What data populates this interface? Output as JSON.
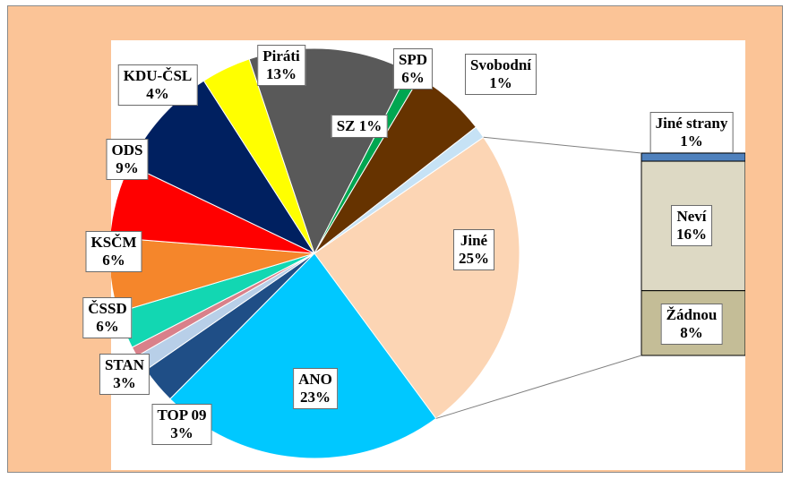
{
  "chart_data": {
    "type": "pie",
    "title": "",
    "slices": [
      {
        "label": "Jiné",
        "value": 25,
        "value_label": "25%",
        "color": "#fcd5b4"
      },
      {
        "label": "ANO",
        "value": 23,
        "value_label": "23%",
        "color": "#00c8ff"
      },
      {
        "label": "TOP 09",
        "value": 3,
        "value_label": "3%",
        "color": "#1f4e86"
      },
      {
        "label": "",
        "value": 1.3,
        "value_label": "",
        "color": "#b8cfe8"
      },
      {
        "label": "",
        "value": 0.8,
        "value_label": "",
        "color": "#d9808a"
      },
      {
        "label": "STAN",
        "value": 3,
        "value_label": "3%",
        "color": "#12d7b2"
      },
      {
        "label": "ČSSD",
        "value": 6,
        "value_label": "6%",
        "color": "#f5862b"
      },
      {
        "label": "KSČM",
        "value": 6,
        "value_label": "6%",
        "color": "#ff0000"
      },
      {
        "label": "ODS",
        "value": 9,
        "value_label": "9%",
        "color": "#002060"
      },
      {
        "label": "KDU-ČSL",
        "value": 4,
        "value_label": "4%",
        "color": "#ffff00"
      },
      {
        "label": "Piráti",
        "value": 13,
        "value_label": "13%",
        "color": "#595959"
      },
      {
        "label": "SZ",
        "value": 1,
        "value_label": "1%",
        "color": "#00a651"
      },
      {
        "label": "SPD",
        "value": 6,
        "value_label": "6%",
        "color": "#663300"
      },
      {
        "label": "Svobodní",
        "value": 1,
        "value_label": "1%",
        "color": "#c6e2f5"
      }
    ],
    "breakdown": {
      "of": "Jiné",
      "type": "stacked-bar",
      "segments": [
        {
          "label": "Jiné strany",
          "value": 1,
          "value_label": "1%",
          "color": "#4f81bd"
        },
        {
          "label": "Neví",
          "value": 16,
          "value_label": "16%",
          "color": "#ddd9c4"
        },
        {
          "label": "Žádnou",
          "value": 8,
          "value_label": "8%",
          "color": "#c4bd97"
        }
      ]
    },
    "legend": "none",
    "colors": {
      "frame_background": "#fbc497",
      "plot_background": "#ffffff",
      "slice_border": "#ffffff",
      "connector": "#808080"
    }
  }
}
